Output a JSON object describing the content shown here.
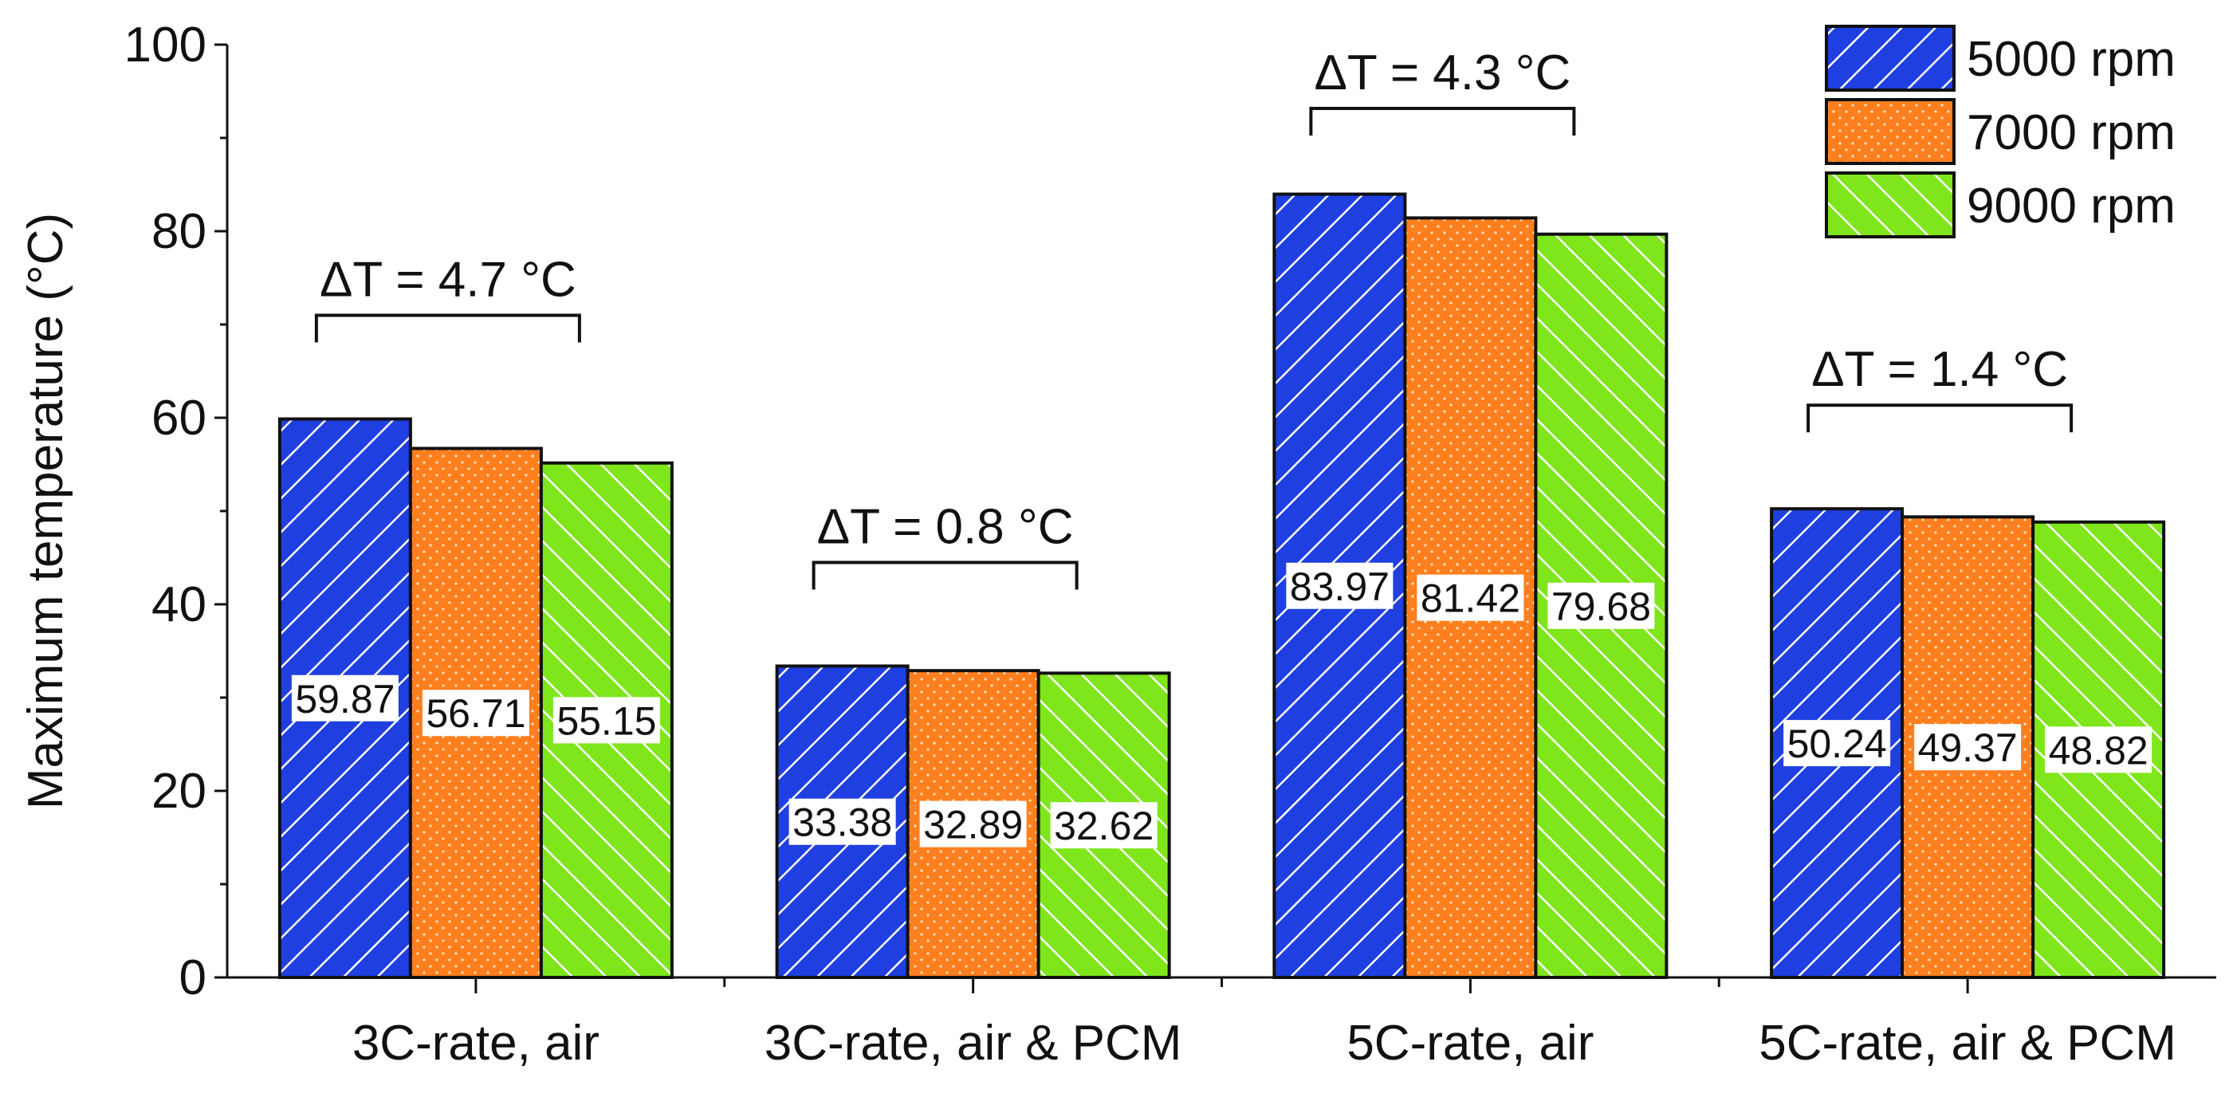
{
  "chart_data": {
    "type": "bar",
    "title": "",
    "xlabel": "",
    "ylabel": "Maximum temperature (°C)",
    "ylim": [
      0,
      100
    ],
    "yticks": [
      0,
      20,
      40,
      60,
      80,
      100
    ],
    "categories": [
      "3C-rate, air",
      "3C-rate, air & PCM",
      "5C-rate, air",
      "5C-rate, air & PCM"
    ],
    "series": [
      {
        "name": "5000 rpm",
        "values": [
          59.87,
          33.38,
          83.97,
          50.24
        ],
        "color": "#1f3fe0",
        "pattern": "hatch-forward"
      },
      {
        "name": "7000 rpm",
        "values": [
          56.71,
          32.89,
          81.42,
          49.37
        ],
        "color": "#ff7f1e",
        "pattern": "dots"
      },
      {
        "name": "9000 rpm",
        "values": [
          55.15,
          32.62,
          79.68,
          48.82
        ],
        "color": "#7ee61a",
        "pattern": "hatch-back"
      }
    ],
    "value_labels": [
      [
        "59.87",
        "33.38",
        "83.97",
        "50.24"
      ],
      [
        "56.71",
        "32.89",
        "81.42",
        "49.37"
      ],
      [
        "55.15",
        "32.62",
        "79.68",
        "48.82"
      ]
    ],
    "annotations": [
      {
        "text": "ΔT = 4.7 °C",
        "category_index": 0
      },
      {
        "text": "ΔT = 0.8 °C",
        "category_index": 1
      },
      {
        "text": "ΔT = 4.3 °C",
        "category_index": 2
      },
      {
        "text": "ΔT = 1.4 °C",
        "category_index": 3
      }
    ],
    "legend": {
      "position": "top-right"
    },
    "grid": false
  }
}
